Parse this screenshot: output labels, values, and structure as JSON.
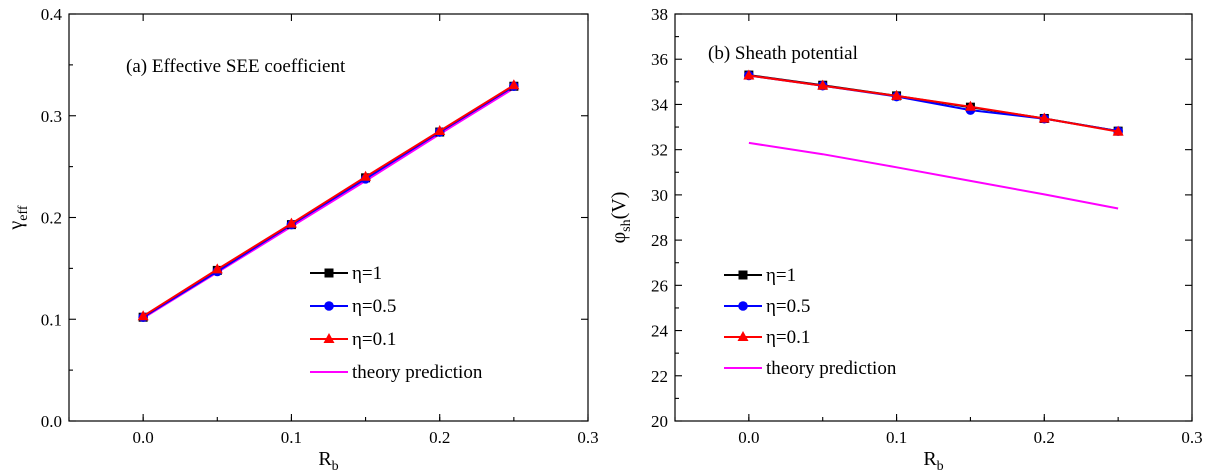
{
  "chart_data": [
    {
      "type": "line",
      "title": "(a) Effective SEE coefficient",
      "xlabel": "R",
      "xlabel_sub": "b",
      "ylabel": "γ",
      "ylabel_sub": "eff",
      "xlim": [
        -0.05,
        0.3
      ],
      "ylim": [
        0.0,
        0.4
      ],
      "xticks": [
        0.0,
        0.1,
        0.2,
        0.3
      ],
      "xtick_labels": [
        "0.0",
        "0.1",
        "0.2",
        "0.3"
      ],
      "yticks": [
        0.0,
        0.1,
        0.2,
        0.3,
        0.4
      ],
      "ytick_labels": [
        "0.0",
        "0.1",
        "0.2",
        "0.3",
        "0.4"
      ],
      "grid": false,
      "legend_position": "lower-right",
      "series": [
        {
          "name": "η=1",
          "marker": "square",
          "color": "#000000",
          "x": [
            0.0,
            0.05,
            0.1,
            0.15,
            0.2,
            0.25
          ],
          "y": [
            0.102,
            0.148,
            0.193,
            0.239,
            0.284,
            0.329
          ]
        },
        {
          "name": "η=0.5",
          "marker": "circle",
          "color": "#0000ff",
          "x": [
            0.0,
            0.05,
            0.1,
            0.15,
            0.2,
            0.25
          ],
          "y": [
            0.102,
            0.147,
            0.193,
            0.238,
            0.284,
            0.329
          ]
        },
        {
          "name": "η=0.1",
          "marker": "triangle",
          "color": "#ff0000",
          "x": [
            0.0,
            0.05,
            0.1,
            0.15,
            0.2,
            0.25
          ],
          "y": [
            0.103,
            0.149,
            0.194,
            0.24,
            0.285,
            0.33
          ]
        },
        {
          "name": "theory prediction",
          "marker": "none",
          "color": "#ff00ff",
          "x": [
            0.0,
            0.05,
            0.1,
            0.15,
            0.2,
            0.25
          ],
          "y": [
            0.101,
            0.146,
            0.191,
            0.236,
            0.282,
            0.327
          ]
        }
      ]
    },
    {
      "type": "line",
      "title": "(b) Sheath potential",
      "xlabel": "R",
      "xlabel_sub": "b",
      "ylabel": "φ",
      "ylabel_sub": "sh",
      "ylabel_suffix": "(V)",
      "xlim": [
        -0.05,
        0.3
      ],
      "ylim": [
        20,
        38
      ],
      "xticks": [
        0.0,
        0.1,
        0.2,
        0.3
      ],
      "xtick_labels": [
        "0.0",
        "0.1",
        "0.2",
        "0.3"
      ],
      "yticks": [
        20,
        22,
        24,
        26,
        28,
        30,
        32,
        34,
        36,
        38
      ],
      "ytick_labels": [
        "20",
        "22",
        "24",
        "26",
        "28",
        "30",
        "32",
        "34",
        "36",
        "38"
      ],
      "grid": false,
      "legend_position": "lower-left",
      "series": [
        {
          "name": "η=1",
          "marker": "square",
          "color": "#000000",
          "x": [
            0.0,
            0.05,
            0.1,
            0.15,
            0.2,
            0.25
          ],
          "y": [
            35.3,
            34.85,
            34.38,
            33.88,
            33.38,
            32.82
          ]
        },
        {
          "name": "η=0.5",
          "marker": "circle",
          "color": "#0000ff",
          "x": [
            0.0,
            0.05,
            0.1,
            0.15,
            0.2,
            0.25
          ],
          "y": [
            35.28,
            34.83,
            34.35,
            33.75,
            33.37,
            32.82
          ]
        },
        {
          "name": "η=0.1",
          "marker": "triangle",
          "color": "#ff0000",
          "x": [
            0.0,
            0.05,
            0.1,
            0.15,
            0.2,
            0.25
          ],
          "y": [
            35.28,
            34.83,
            34.38,
            33.9,
            33.38,
            32.8
          ]
        },
        {
          "name": "theory prediction",
          "marker": "none",
          "color": "#ff00ff",
          "x": [
            0.0,
            0.05,
            0.1,
            0.15,
            0.2,
            0.25
          ],
          "y": [
            32.3,
            31.8,
            31.22,
            30.62,
            30.02,
            29.4
          ]
        }
      ]
    }
  ]
}
